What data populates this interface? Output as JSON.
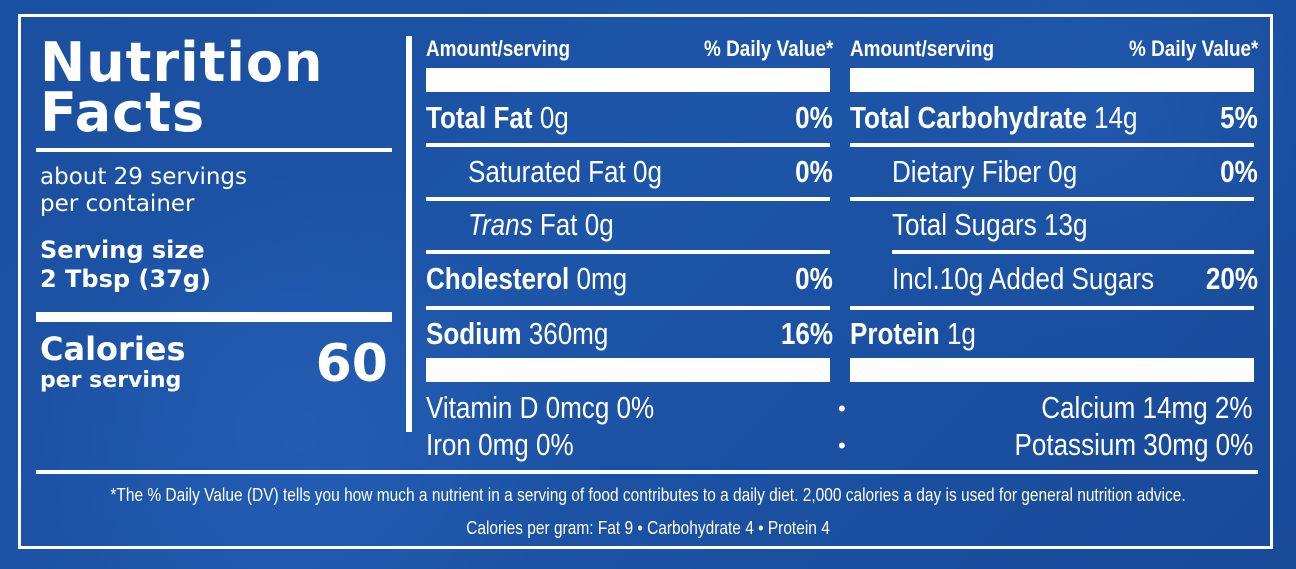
{
  "label": {
    "title_line1": "Nutrition",
    "title_line2": "Facts",
    "servings_line1": "about 29 servings",
    "servings_line2": "per container",
    "serving_size_label": "Serving size",
    "serving_size_value": "2 Tbsp (37g)",
    "calories_label": "Calories",
    "calories_sub": "per serving",
    "calories_value": "60"
  },
  "headers": {
    "amount": "Amount/serving",
    "daily_value": "% Daily Value*"
  },
  "left_nutrients": [
    {
      "name": "Total Fat",
      "amount": "0g",
      "dv": "0%"
    },
    {
      "name": "Saturated Fat",
      "amount": "0g",
      "dv": "0%"
    },
    {
      "name": "Trans",
      "amount": "Fat 0g",
      "dv": ""
    },
    {
      "name": "Cholesterol",
      "amount": "0mg",
      "dv": "0%"
    },
    {
      "name": "Sodium",
      "amount": "360mg",
      "dv": "16%"
    }
  ],
  "right_nutrients": [
    {
      "name": "Total Carbohydrate",
      "amount": "14g",
      "dv": "5%"
    },
    {
      "name": "Dietary Fiber",
      "amount": "0g",
      "dv": "0%"
    },
    {
      "name": "Total Sugars",
      "amount": "13g",
      "dv": ""
    },
    {
      "name": "Incl.10g Added Sugars",
      "amount": "",
      "dv": "20%"
    },
    {
      "name": "Protein",
      "amount": "1g",
      "dv": ""
    }
  ],
  "vitamins": {
    "left": [
      "Vitamin D 0mcg 0%",
      "Iron 0mg 0%"
    ],
    "right": [
      "Calcium 14mg 2%",
      "Potassium 30mg 0%"
    ],
    "separator": "•"
  },
  "footnote": {
    "line1": "*The % Daily Value (DV) tells you how much a nutrient in a serving of food contributes to a daily diet. 2,000 calories a day is used for general nutrition advice.",
    "line2": "Calories per gram: Fat 9  •  Carbohydrate 4  •  Protein 4"
  },
  "colors": {
    "background": "#1a4e9e",
    "foreground": "#ffffff"
  }
}
